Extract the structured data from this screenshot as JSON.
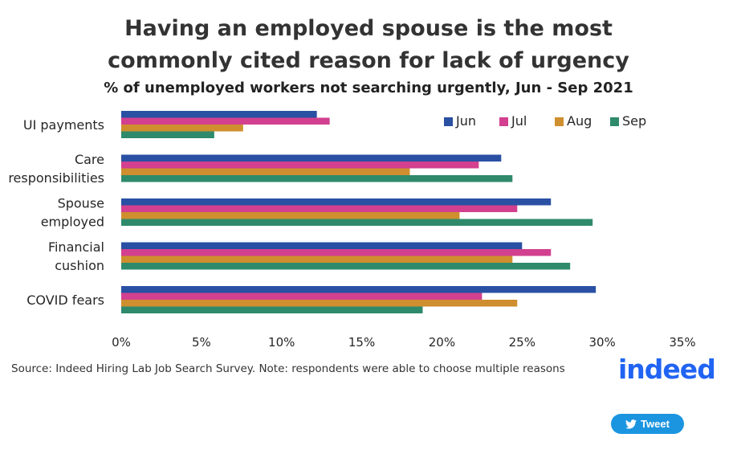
{
  "chart_data": {
    "type": "bar",
    "orientation": "horizontal",
    "title_line1": "Having an employed spouse is the most",
    "title_line2": "commonly cited reason for lack of urgency",
    "subtitle": "% of unemployed workers not searching urgently, Jun - Sep 2021",
    "categories": [
      [
        "UI payments"
      ],
      [
        "Care",
        "responsibilities"
      ],
      [
        "Spouse",
        "employed"
      ],
      [
        "Financial",
        "cushion"
      ],
      [
        "COVID fears"
      ]
    ],
    "series": [
      {
        "name": "Jun",
        "color": "#2950a3",
        "values": [
          12.2,
          23.7,
          26.8,
          25.0,
          29.6
        ]
      },
      {
        "name": "Jul",
        "color": "#d2408f",
        "values": [
          13.0,
          22.3,
          24.7,
          26.8,
          22.5
        ]
      },
      {
        "name": "Aug",
        "color": "#cf8f2e",
        "values": [
          7.6,
          18.0,
          21.1,
          24.4,
          24.7
        ]
      },
      {
        "name": "Sep",
        "color": "#2f8a6c",
        "values": [
          5.8,
          24.4,
          29.4,
          28.0,
          18.8
        ]
      }
    ],
    "xlim": [
      0,
      35
    ],
    "xticks": [
      0,
      5,
      10,
      15,
      20,
      25,
      30,
      35
    ],
    "tick_suffix": "%",
    "legend_position": "top-right",
    "grid": false
  },
  "footer": {
    "source": "Source: Indeed Hiring Lab Job Search Survey. Note: respondents were able to choose multiple reasons",
    "logo_text": "indeed"
  },
  "tweet_button": {
    "label": "Tweet",
    "icon": "twitter-bird-icon"
  }
}
